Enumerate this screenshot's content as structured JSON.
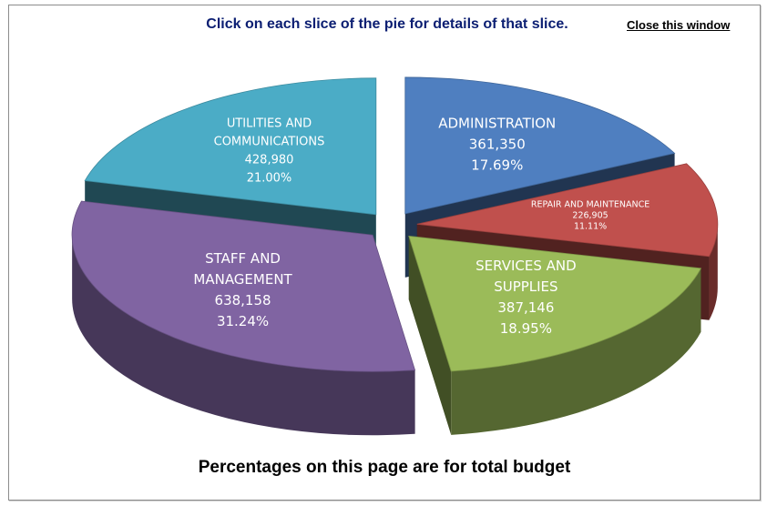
{
  "header": {
    "instruction": "Click on each slice of the pie for details of that slice.",
    "close_label": "Close this window"
  },
  "footer": {
    "note": "Percentages on this page are for total budget"
  },
  "chart_data": {
    "type": "pie",
    "style": "3d-exploded",
    "title": "",
    "legend": "none",
    "slices": [
      {
        "label": [
          "ADMINISTRATION"
        ],
        "value": 361350,
        "value_label": "361,350",
        "percent": "17.69%",
        "color": "#4f7fc0"
      },
      {
        "label": [
          "REPAIR AND MAINTENANCE"
        ],
        "value": 226905,
        "value_label": "226,905",
        "percent": "11.11%",
        "color": "#c0504d"
      },
      {
        "label": [
          "SERVICES AND",
          "SUPPLIES"
        ],
        "value": 387146,
        "value_label": "387,146",
        "percent": "18.95%",
        "color": "#9bbb59"
      },
      {
        "label": [
          "STAFF AND",
          "MANAGEMENT"
        ],
        "value": 638158,
        "value_label": "638,158",
        "percent": "31.24%",
        "color": "#8064a2"
      },
      {
        "label": [
          "UTILITIES AND",
          "COMMUNICATIONS"
        ],
        "value": 428980,
        "value_label": "428,980",
        "percent": "21.00%",
        "color": "#4bacc6"
      }
    ]
  }
}
